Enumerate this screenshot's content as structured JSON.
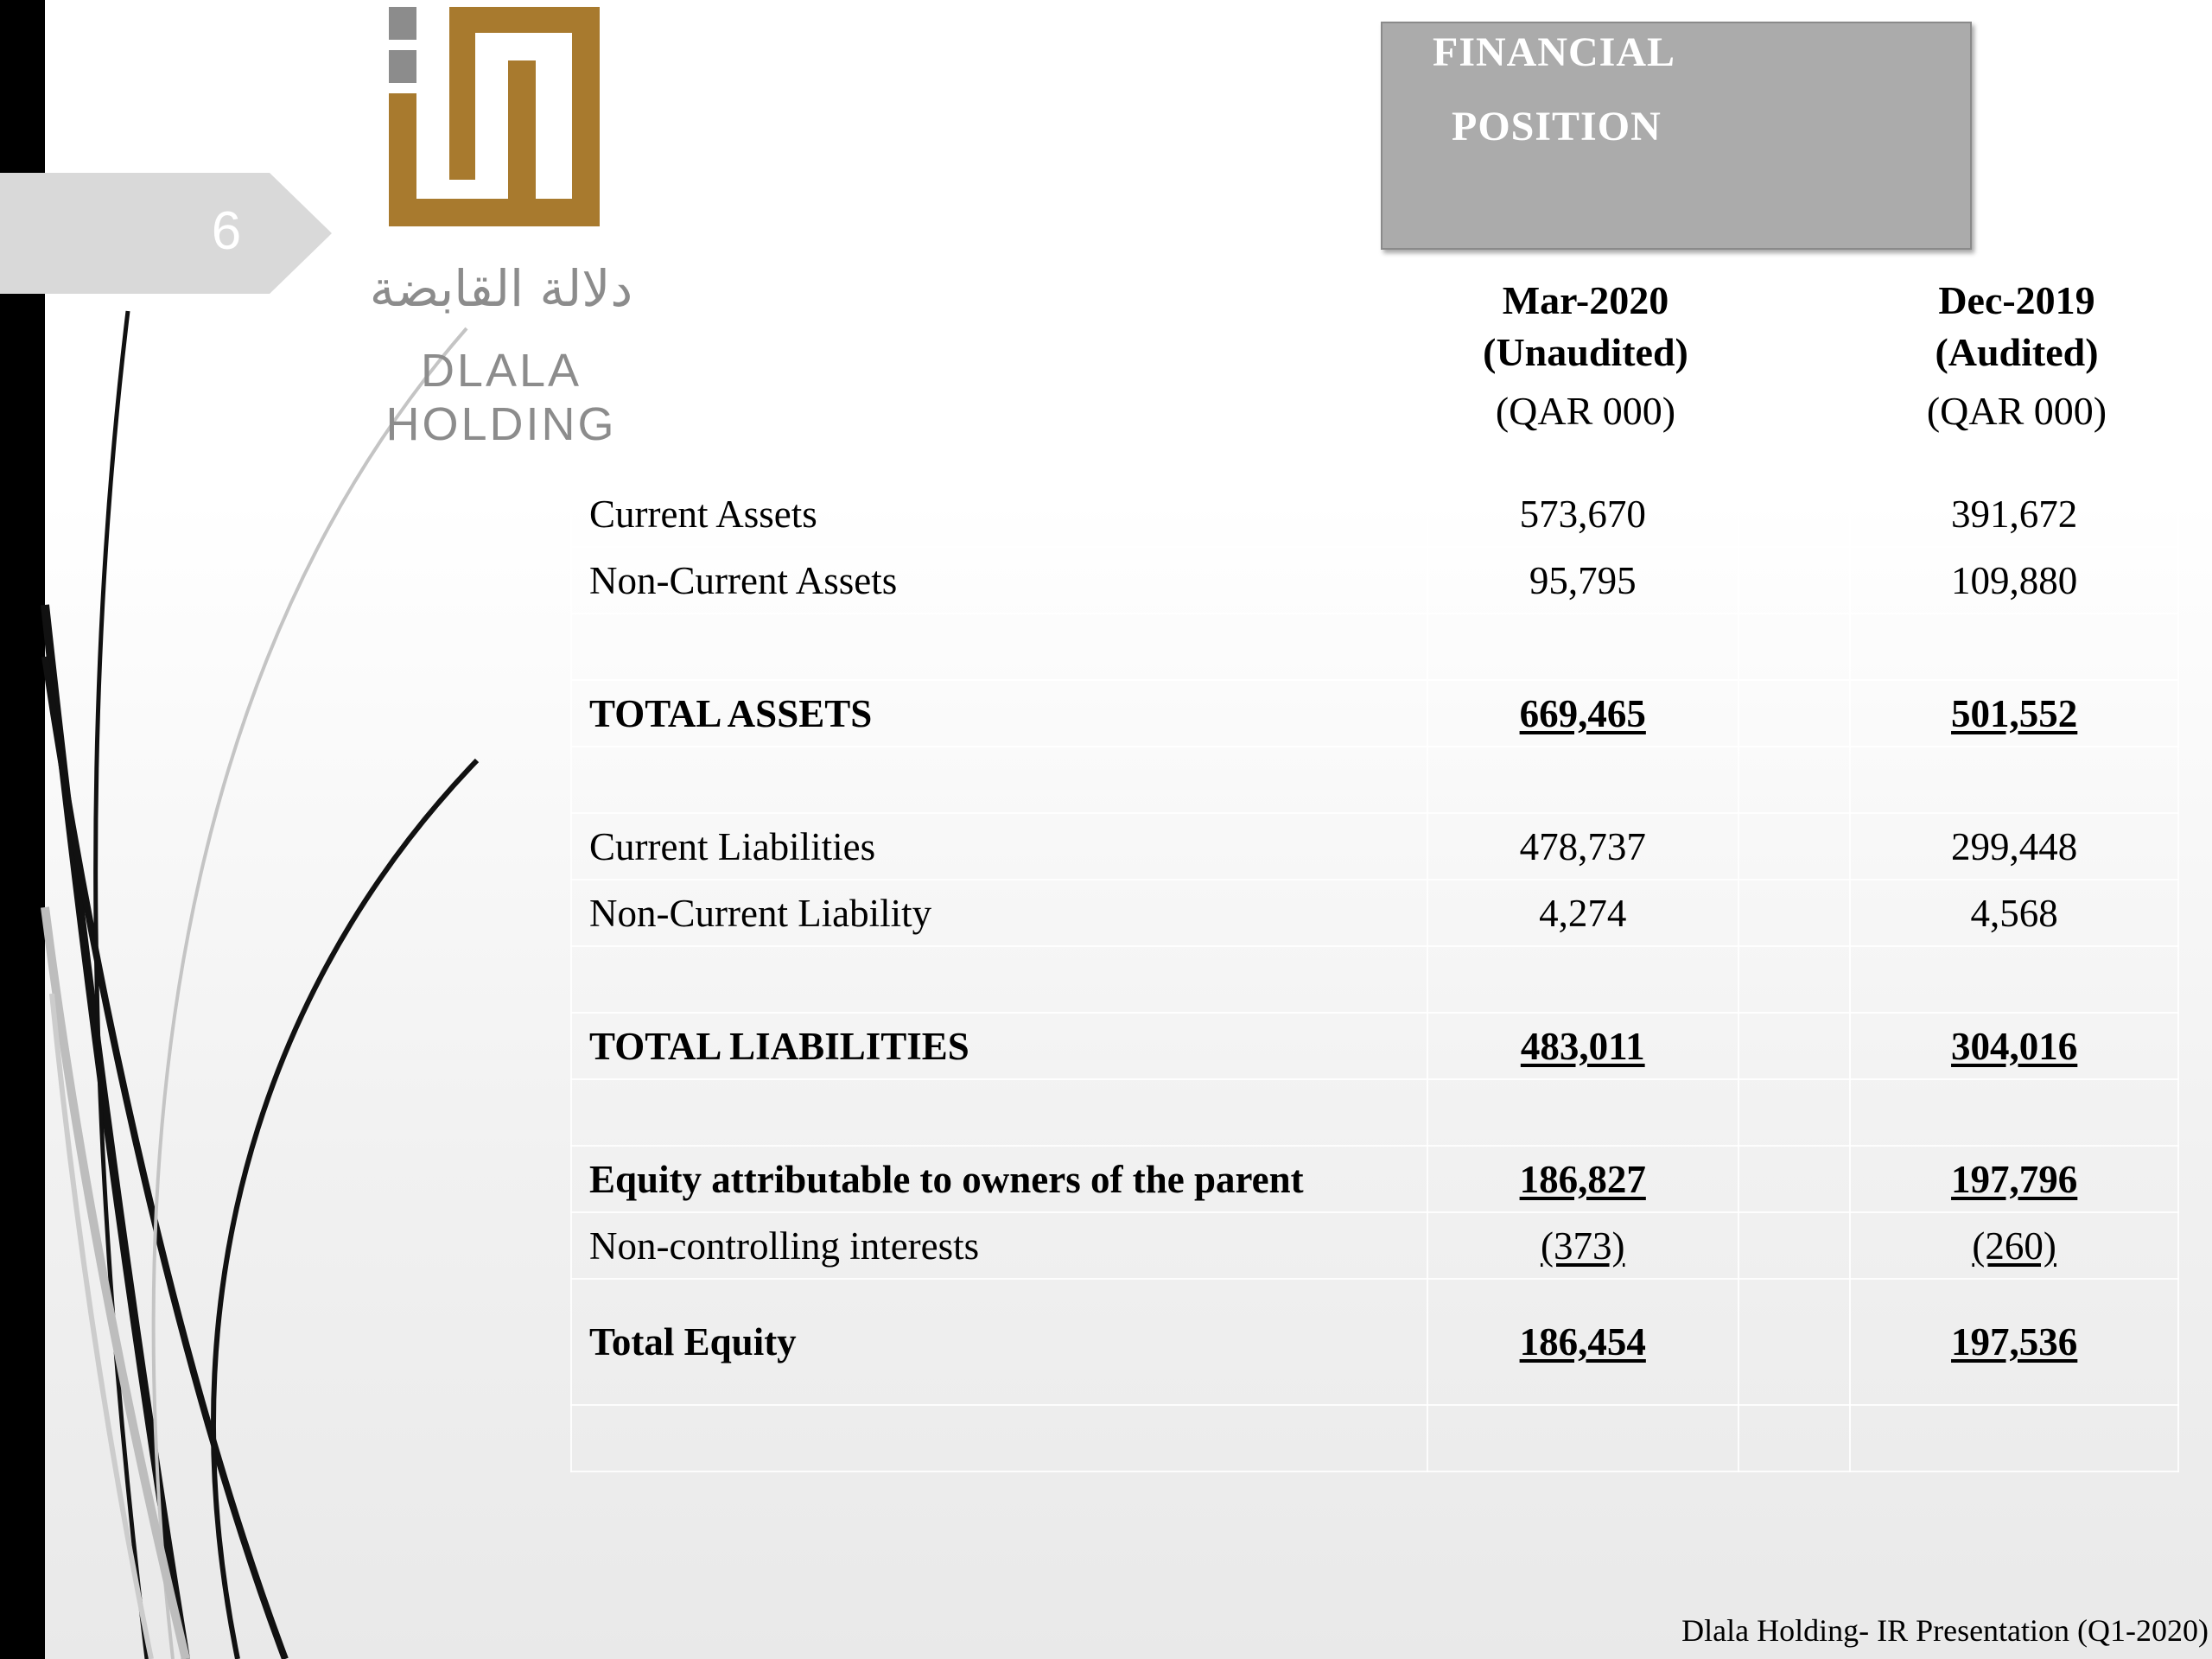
{
  "slide": {
    "page_number": "6",
    "footer": "Dlala Holding- IR Presentation (Q1-2020)"
  },
  "logo": {
    "arabic_name": "دلالة القابضة",
    "latin_name": "DLALA HOLDING",
    "brand_color": "#a87a2e",
    "accent_gray": "#8c8c8c"
  },
  "title": {
    "line1": "FINANCIAL",
    "line2": "POSITION",
    "box_color": "#ababab"
  },
  "columns": [
    {
      "period": "Mar-2020",
      "status": "(Unaudited)",
      "unit": "(QAR 000)"
    },
    {
      "period": "Dec-2019",
      "status": "(Audited)",
      "unit": "(QAR 000)"
    }
  ],
  "rows": [
    {
      "label": "Current Assets",
      "mar2020": "573,670",
      "dec2019": "391,672"
    },
    {
      "label": "Non-Current Assets",
      "mar2020": "95,795",
      "dec2019": "109,880"
    },
    {
      "label": "TOTAL ASSETS",
      "mar2020": "669,465",
      "dec2019": "501,552"
    },
    {
      "label": "Current Liabilities",
      "mar2020": "478,737",
      "dec2019": "299,448"
    },
    {
      "label": "Non-Current Liability",
      "mar2020": "4,274",
      "dec2019": "4,568"
    },
    {
      "label": "TOTAL LIABILITIES",
      "mar2020": "483,011",
      "dec2019": "304,016"
    },
    {
      "label": "Equity attributable to owners of the parent",
      "mar2020": "186,827",
      "dec2019": "197,796"
    },
    {
      "label": "Non-controlling interests",
      "mar2020": "(373)",
      "dec2019": "(260)"
    },
    {
      "label": "Total Equity",
      "mar2020": "186,454",
      "dec2019": "197,536"
    }
  ]
}
